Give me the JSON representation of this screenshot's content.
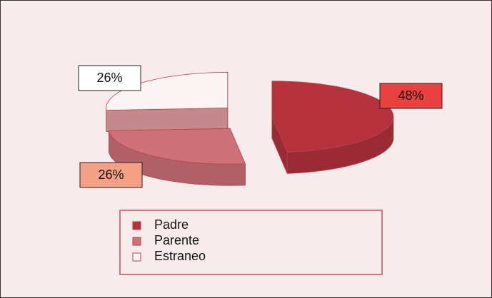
{
  "chart_data": {
    "type": "pie3d",
    "categories": [
      "Padre",
      "Parente",
      "Estraneo"
    ],
    "values": [
      48,
      26,
      26
    ],
    "value_labels": [
      "48%",
      "26%",
      "26%"
    ],
    "colors": [
      "#b5323d",
      "#cf7179",
      "#fdf5f5"
    ],
    "label_colors": [
      "#e8413f",
      "#f4a085",
      "#ffffff"
    ],
    "legend": "bottom"
  }
}
